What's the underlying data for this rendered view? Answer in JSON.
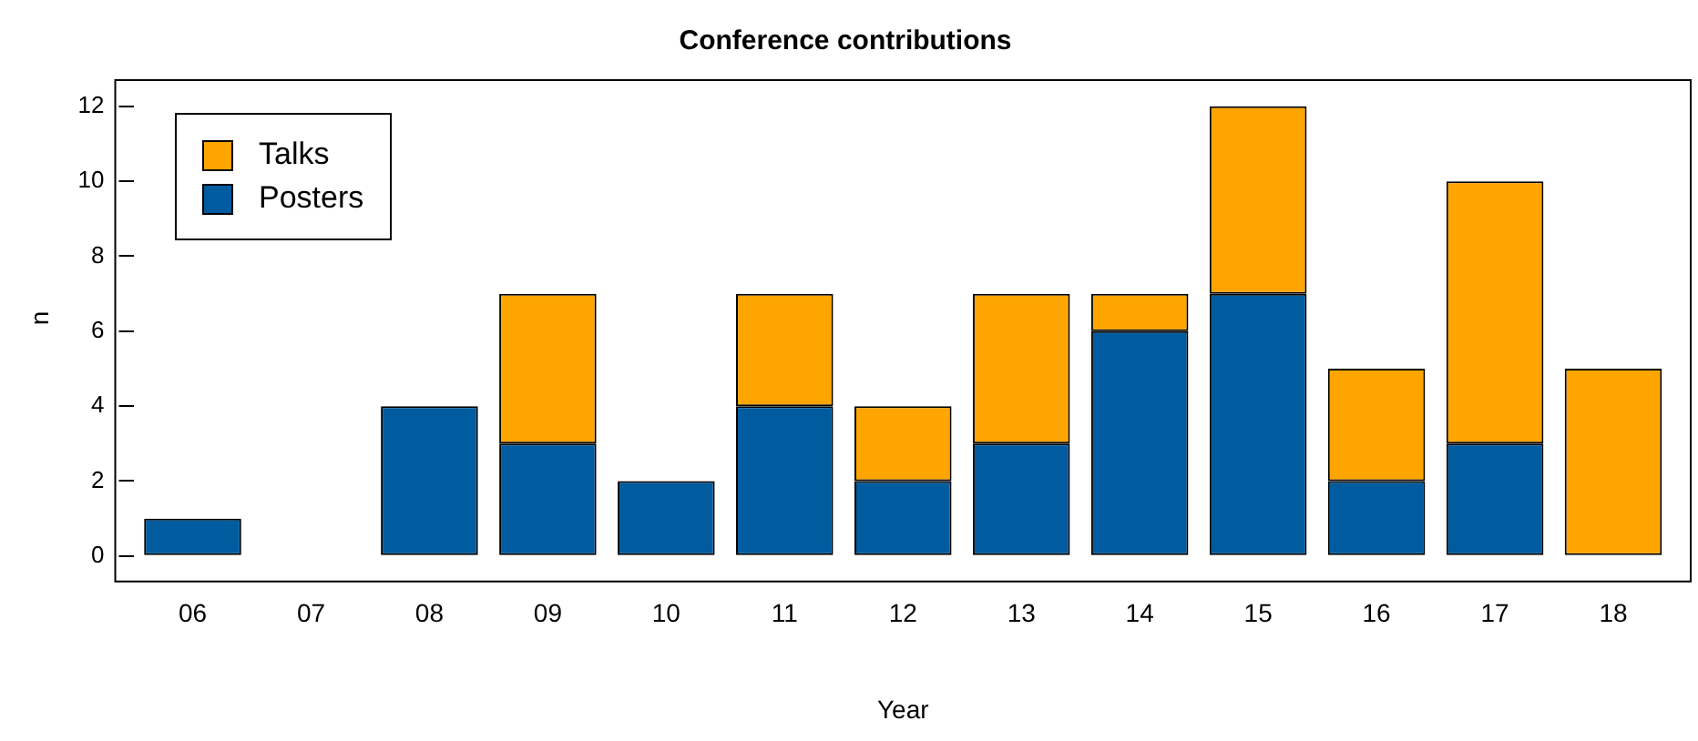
{
  "chart_data": {
    "type": "bar",
    "title": "Conference contributions",
    "xlabel": "Year",
    "ylabel": "n",
    "categories": [
      "06",
      "07",
      "08",
      "09",
      "10",
      "11",
      "12",
      "13",
      "14",
      "15",
      "16",
      "17",
      "18"
    ],
    "stacked": true,
    "ylim": [
      0,
      12.7
    ],
    "yticks": [
      0,
      2,
      4,
      6,
      8,
      10,
      12
    ],
    "grid": false,
    "legend": "top left",
    "series": [
      {
        "name": "Posters",
        "color": "#005b9f",
        "values": [
          1,
          0,
          4,
          3,
          2,
          4,
          2,
          3,
          6,
          7,
          2,
          3,
          0
        ]
      },
      {
        "name": "Talks",
        "color": "#ffa500",
        "values": [
          0,
          0,
          0,
          4,
          0,
          3,
          2,
          4,
          1,
          5,
          3,
          7,
          5
        ]
      }
    ]
  }
}
